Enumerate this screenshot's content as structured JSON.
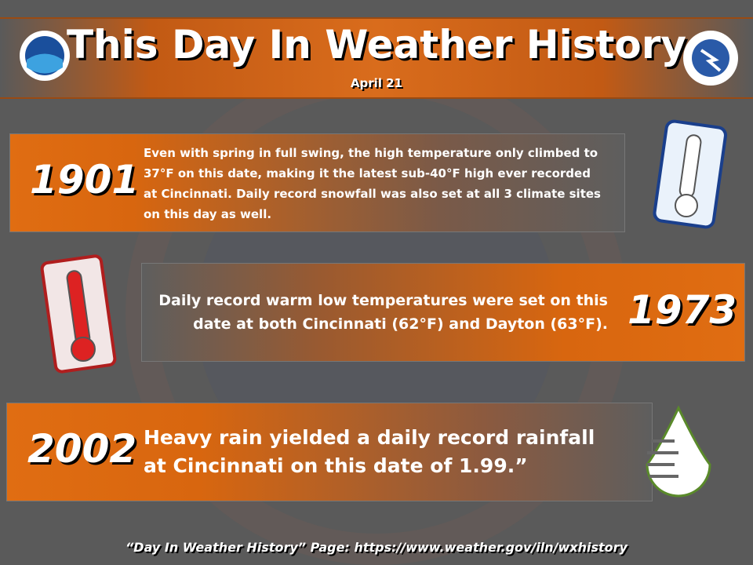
{
  "header": {
    "title": "This Day In Weather History",
    "date": "April 21"
  },
  "events": [
    {
      "year": "1901",
      "text": "Even with spring in full swing, the high temperature only climbed to 37°F on this date, making it the latest sub-40°F high ever recorded at Cincinnati. Daily record snowfall was also set at all 3 climate sites on this day as well."
    },
    {
      "year": "1973",
      "text": "Daily record warm low temperatures were set on this date at both Cincinnati (62°F) and Dayton (63°F)."
    },
    {
      "year": "2002",
      "text": "Heavy rain yielded a daily record rainfall at Cincinnati on this date of 1.99.”"
    }
  ],
  "footer": "“Day In Weather History” Page: https://www.weather.gov/iln/wxhistory"
}
